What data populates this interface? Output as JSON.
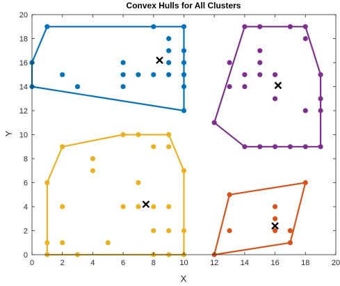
{
  "chart_data": {
    "type": "scatter",
    "title": "Convex Hulls for All Clusters",
    "xlabel": "X",
    "ylabel": "Y",
    "xlim": [
      0,
      20
    ],
    "ylim": [
      0,
      20
    ],
    "xticks": [
      0,
      2,
      4,
      6,
      8,
      10,
      12,
      14,
      16,
      18,
      20
    ],
    "yticks": [
      0,
      2,
      4,
      6,
      8,
      10,
      12,
      14,
      16,
      18,
      20
    ],
    "grid": false,
    "series": [
      {
        "color": "#0072BD",
        "points": [
          [
            0,
            16
          ],
          [
            0,
            14
          ],
          [
            1,
            19
          ],
          [
            2,
            15
          ],
          [
            3,
            14
          ],
          [
            6,
            16
          ],
          [
            6,
            15
          ],
          [
            6,
            14
          ],
          [
            7,
            15
          ],
          [
            8,
            19
          ],
          [
            8,
            15
          ],
          [
            9,
            18
          ],
          [
            9,
            17
          ],
          [
            9,
            16
          ],
          [
            9,
            15
          ],
          [
            10,
            19
          ],
          [
            10,
            17
          ],
          [
            10,
            16
          ],
          [
            10,
            15
          ],
          [
            10,
            14
          ],
          [
            10,
            12
          ]
        ],
        "hull": [
          [
            0,
            16
          ],
          [
            1,
            19
          ],
          [
            10,
            19
          ],
          [
            10,
            12
          ],
          [
            0,
            14
          ]
        ],
        "centroid": [
          8.4,
          16.2
        ]
      },
      {
        "color": "#7E2F8E",
        "points": [
          [
            12,
            11
          ],
          [
            13,
            16
          ],
          [
            13,
            14
          ],
          [
            14,
            19
          ],
          [
            14,
            15
          ],
          [
            14,
            14
          ],
          [
            14,
            9
          ],
          [
            15,
            19
          ],
          [
            15,
            17
          ],
          [
            15,
            16
          ],
          [
            15,
            15
          ],
          [
            15,
            9
          ],
          [
            16,
            15
          ],
          [
            16,
            13
          ],
          [
            16,
            9
          ],
          [
            17,
            19
          ],
          [
            17,
            9
          ],
          [
            18,
            19
          ],
          [
            18,
            18
          ],
          [
            18,
            12
          ],
          [
            18,
            9
          ],
          [
            19,
            15
          ],
          [
            19,
            13
          ],
          [
            19,
            12
          ],
          [
            19,
            9
          ]
        ],
        "hull": [
          [
            12,
            11
          ],
          [
            14,
            19
          ],
          [
            18,
            19
          ],
          [
            19,
            15
          ],
          [
            19,
            9
          ],
          [
            14,
            9
          ]
        ],
        "centroid": [
          16.2,
          14.1
        ]
      },
      {
        "color": "#EDB120",
        "points": [
          [
            1,
            6
          ],
          [
            1,
            1
          ],
          [
            1,
            0
          ],
          [
            2,
            9
          ],
          [
            2,
            4
          ],
          [
            2,
            1
          ],
          [
            3,
            0
          ],
          [
            4,
            8
          ],
          [
            4,
            7
          ],
          [
            5,
            1
          ],
          [
            6,
            10
          ],
          [
            6,
            4
          ],
          [
            7,
            10
          ],
          [
            7,
            6
          ],
          [
            7,
            4
          ],
          [
            8,
            9
          ],
          [
            8,
            4
          ],
          [
            8,
            2
          ],
          [
            8,
            0
          ],
          [
            9,
            10
          ],
          [
            9,
            9
          ],
          [
            9,
            4
          ],
          [
            9,
            2
          ],
          [
            9,
            0
          ],
          [
            10,
            7
          ],
          [
            10,
            2
          ],
          [
            10,
            0
          ]
        ],
        "hull": [
          [
            1,
            6
          ],
          [
            2,
            9
          ],
          [
            6,
            10
          ],
          [
            9,
            10
          ],
          [
            10,
            7
          ],
          [
            10,
            0
          ],
          [
            1,
            0
          ]
        ],
        "centroid": [
          7.5,
          4.2
        ]
      },
      {
        "color": "#D95319",
        "points": [
          [
            12,
            0
          ],
          [
            13,
            5
          ],
          [
            13,
            2
          ],
          [
            16,
            4
          ],
          [
            16,
            3
          ],
          [
            16,
            2
          ],
          [
            17,
            2
          ],
          [
            17,
            1
          ],
          [
            18,
            6
          ]
        ],
        "hull": [
          [
            12,
            0
          ],
          [
            13,
            5
          ],
          [
            18,
            6
          ],
          [
            17,
            1
          ]
        ],
        "centroid": [
          16.0,
          2.4
        ]
      }
    ]
  }
}
